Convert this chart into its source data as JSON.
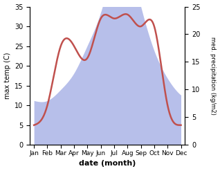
{
  "months": [
    "Jan",
    "Feb",
    "Mar",
    "Apr",
    "May",
    "Jun",
    "Jul",
    "Aug",
    "Sep",
    "Oct",
    "Nov",
    "Dec"
  ],
  "temperature": [
    5,
    10,
    25,
    25,
    22,
    32,
    32,
    33,
    30,
    30,
    10,
    5
  ],
  "precipitation": [
    8,
    8,
    10,
    13,
    18,
    24,
    32,
    33,
    25,
    17,
    12,
    9
  ],
  "temp_color": "#c0504d",
  "precip_color": "#b0b8e8",
  "ylim_left": [
    0,
    35
  ],
  "ylim_right": [
    0,
    25
  ],
  "xlabel": "date (month)",
  "ylabel_left": "max temp (C)",
  "ylabel_right": "med. precipitation (kg/m2)",
  "bg_color": "#ffffff",
  "line_width": 1.8,
  "yticks_left": [
    0,
    5,
    10,
    15,
    20,
    25,
    30,
    35
  ],
  "yticks_right": [
    0,
    5,
    10,
    15,
    20,
    25
  ]
}
